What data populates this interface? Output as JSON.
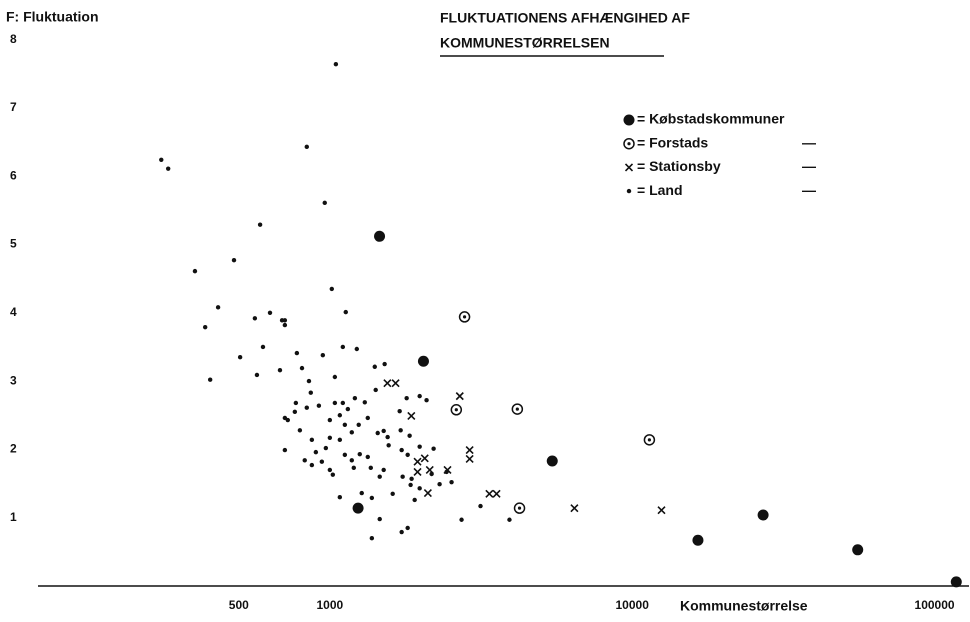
{
  "chart_data": {
    "type": "scatter",
    "title": [
      "FLUKTUATIONENS AFHÆNGIHED AF",
      "KOMMUNESTØRRELSEN"
    ],
    "y_label": "F: Fluktuation",
    "x_label": "Kommunestørrelse",
    "x_log": true,
    "xlim": [
      110,
      130000
    ],
    "ylim": [
      0,
      8.5
    ],
    "xticks": [
      500,
      1000,
      10000,
      100000
    ],
    "yticks": [
      1,
      2,
      3,
      4,
      5,
      6,
      7,
      8
    ],
    "grid": false,
    "legend": "upper right",
    "series": [
      {
        "name": "= Købstadskommuner",
        "marker": "filled-circle",
        "color": "#111111",
        "x": [
          1460,
          2040,
          1240,
          5440,
          16500,
          27100,
          55700,
          118000
        ],
        "values": [
          5.12,
          3.29,
          1.14,
          1.83,
          0.67,
          1.04,
          0.53,
          0.06
        ]
      },
      {
        "name": "= Forstads",
        "ditto": "—",
        "marker": "ring-dot",
        "color": "#111111",
        "x": [
          2790,
          2620,
          4170,
          11400,
          4240
        ],
        "values": [
          3.94,
          2.58,
          2.59,
          2.14,
          1.14
        ]
      },
      {
        "name": "= Stationsby",
        "ditto": "—",
        "marker": "cross",
        "color": "#111111",
        "x": [
          1550,
          1650,
          1860,
          2690,
          2900,
          2900,
          1950,
          2060,
          1950,
          2140,
          2450,
          2110,
          3370,
          3560,
          6440,
          12500
        ],
        "values": [
          2.97,
          2.97,
          2.49,
          2.78,
          1.99,
          1.86,
          1.82,
          1.87,
          1.67,
          1.7,
          1.7,
          1.36,
          1.35,
          1.35,
          1.14,
          1.11
        ]
      },
      {
        "name": "= Land",
        "ditto": "—",
        "marker": "dot",
        "color": "#111111",
        "x": [
          277,
          292,
          358,
          482,
          427,
          387,
          588,
          402,
          505,
          601,
          574,
          565,
          634,
          695,
          710,
          710,
          839,
          962,
          1047,
          1015,
          1129,
          1104,
          1228,
          778,
          948,
          809,
          684,
          1039,
          1408,
          1518,
          853,
          865,
          772,
          839,
          766,
          710,
          726,
          920,
          1039,
          1104,
          1147,
          1210,
          1305,
          1418,
          1000,
          1121,
          1079,
          1246,
          1335,
          796,
          872,
          1000,
          1079,
          1182,
          1440,
          1507,
          1553,
          1702,
          1795,
          1715,
          1982,
          2089,
          1836,
          1565,
          1728,
          1809,
          1982,
          2204,
          710,
          899,
          970,
          1121,
          1182,
          1256,
          1335,
          826,
          941,
          872,
          1000,
          1023,
          1200,
          1366,
          1507,
          1741,
          1864,
          2171,
          2432,
          2307,
          2527,
          1462,
          1079,
          1275,
          1377,
          1850,
          1982,
          1908,
          1614,
          1462,
          1377,
          1728,
          1809,
          2727,
          3150,
          3927
        ],
        "values": [
          6.24,
          6.11,
          4.61,
          4.77,
          4.08,
          3.79,
          5.29,
          3.02,
          3.35,
          3.5,
          3.09,
          3.92,
          4.0,
          3.89,
          3.82,
          3.89,
          6.43,
          5.61,
          7.64,
          4.35,
          4.01,
          3.5,
          3.47,
          3.41,
          3.38,
          3.19,
          3.16,
          3.06,
          3.21,
          3.25,
          3.0,
          2.83,
          2.68,
          2.61,
          2.55,
          2.46,
          2.43,
          2.64,
          2.68,
          2.68,
          2.59,
          2.75,
          2.69,
          2.87,
          2.43,
          2.36,
          2.5,
          2.36,
          2.46,
          2.28,
          2.14,
          2.17,
          2.14,
          2.25,
          2.24,
          2.27,
          2.18,
          2.56,
          2.75,
          2.28,
          2.78,
          2.72,
          2.2,
          2.06,
          1.99,
          1.92,
          2.04,
          2.01,
          1.99,
          1.96,
          2.02,
          1.92,
          1.84,
          1.93,
          1.89,
          1.84,
          1.82,
          1.77,
          1.7,
          1.63,
          1.73,
          1.73,
          1.7,
          1.6,
          1.57,
          1.64,
          1.67,
          1.49,
          1.52,
          1.6,
          1.3,
          1.36,
          1.29,
          1.48,
          1.43,
          1.26,
          1.35,
          0.98,
          0.7,
          0.79,
          0.85,
          0.97,
          1.17,
          0.97
        ]
      }
    ]
  }
}
